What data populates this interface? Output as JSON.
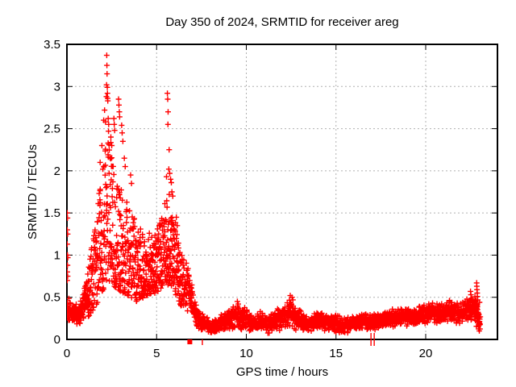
{
  "chart_data": {
    "type": "scatter",
    "title": "Day 350 of 2024, SRMTID for receiver areg",
    "xlabel": "GPS time / hours",
    "ylabel": "SRMTID / TECUs",
    "xlim": [
      0,
      24
    ],
    "ylim": [
      0,
      3.5
    ],
    "xticks": [
      0,
      5,
      10,
      15,
      20
    ],
    "xtick_labels": [
      "0",
      "5",
      "10",
      "15",
      "20"
    ],
    "yticks": [
      0,
      0.5,
      1,
      1.5,
      2,
      2.5,
      3,
      3.5
    ],
    "ytick_labels": [
      "0",
      "0.5",
      "1",
      "1.5",
      "2",
      "2.5",
      "3",
      "3.5"
    ],
    "grid": "dotted",
    "legend": "none",
    "marker": {
      "shape": "plus",
      "color": "#ff0000",
      "size": 7
    },
    "series_name": "SRMTID for receiver areg",
    "time_range_hours": [
      0,
      23.05
    ],
    "peak_value": 3.37,
    "peak_time": 2.22,
    "seed": 1337,
    "envelope": [
      [
        0.0,
        0.22,
        0.55,
        140
      ],
      [
        0.3,
        0.17,
        0.45,
        155
      ],
      [
        0.7,
        0.15,
        0.42,
        155
      ],
      [
        1.0,
        0.22,
        0.65,
        150
      ],
      [
        1.3,
        0.3,
        1.0,
        140
      ],
      [
        1.6,
        0.4,
        1.45,
        140
      ],
      [
        1.9,
        0.5,
        1.9,
        135
      ],
      [
        2.1,
        0.6,
        2.3,
        135
      ],
      [
        2.3,
        0.7,
        2.6,
        135
      ],
      [
        2.5,
        0.65,
        2.3,
        135
      ],
      [
        2.8,
        0.6,
        2.0,
        130
      ],
      [
        3.1,
        0.55,
        1.75,
        130
      ],
      [
        3.5,
        0.5,
        1.55,
        130
      ],
      [
        3.9,
        0.45,
        1.4,
        130
      ],
      [
        4.3,
        0.5,
        1.3,
        135
      ],
      [
        4.7,
        0.55,
        1.25,
        140
      ],
      [
        5.0,
        0.55,
        1.3,
        140
      ],
      [
        5.3,
        0.6,
        1.45,
        140
      ],
      [
        5.6,
        0.65,
        1.85,
        140
      ],
      [
        5.9,
        0.6,
        1.6,
        140
      ],
      [
        6.2,
        0.45,
        1.2,
        135
      ],
      [
        6.5,
        0.35,
        0.95,
        130
      ],
      [
        6.8,
        0.3,
        0.9,
        125
      ],
      [
        7.0,
        0.2,
        0.6,
        120
      ],
      [
        7.2,
        0.15,
        0.45,
        115
      ],
      [
        7.5,
        0.08,
        0.28,
        115
      ],
      [
        7.7,
        0.12,
        0.38,
        115
      ],
      [
        8.0,
        0.05,
        0.2,
        115
      ],
      [
        8.3,
        0.08,
        0.25,
        115
      ],
      [
        8.6,
        0.1,
        0.32,
        115
      ],
      [
        9.0,
        0.1,
        0.35,
        115
      ],
      [
        9.4,
        0.12,
        0.45,
        115
      ],
      [
        9.7,
        0.1,
        0.38,
        115
      ],
      [
        10.0,
        0.1,
        0.42,
        115
      ],
      [
        10.4,
        0.08,
        0.3,
        115
      ],
      [
        10.8,
        0.1,
        0.35,
        115
      ],
      [
        11.2,
        0.06,
        0.28,
        115
      ],
      [
        11.6,
        0.1,
        0.38,
        115
      ],
      [
        12.0,
        0.1,
        0.4,
        115
      ],
      [
        12.4,
        0.12,
        0.52,
        115
      ],
      [
        12.7,
        0.1,
        0.42,
        115
      ],
      [
        13.0,
        0.1,
        0.38,
        115
      ],
      [
        13.4,
        0.07,
        0.3,
        115
      ],
      [
        13.8,
        0.1,
        0.32,
        115
      ],
      [
        14.2,
        0.1,
        0.35,
        115
      ],
      [
        14.6,
        0.08,
        0.3,
        115
      ],
      [
        15.0,
        0.08,
        0.32,
        115
      ],
      [
        15.4,
        0.06,
        0.26,
        115
      ],
      [
        15.8,
        0.08,
        0.28,
        115
      ],
      [
        16.3,
        0.12,
        0.3,
        115
      ],
      [
        16.8,
        0.1,
        0.32,
        115
      ],
      [
        17.3,
        0.12,
        0.33,
        115
      ],
      [
        17.8,
        0.13,
        0.35,
        115
      ],
      [
        18.3,
        0.15,
        0.38,
        115
      ],
      [
        18.8,
        0.16,
        0.4,
        115
      ],
      [
        19.3,
        0.15,
        0.38,
        115
      ],
      [
        19.8,
        0.17,
        0.42,
        118
      ],
      [
        20.3,
        0.18,
        0.45,
        118
      ],
      [
        20.8,
        0.18,
        0.45,
        118
      ],
      [
        21.3,
        0.18,
        0.48,
        118
      ],
      [
        21.8,
        0.18,
        0.45,
        118
      ],
      [
        22.3,
        0.2,
        0.5,
        122
      ],
      [
        22.7,
        0.16,
        0.55,
        140
      ],
      [
        22.95,
        0.08,
        0.45,
        190
      ],
      [
        23.05,
        0.05,
        0.3,
        120
      ]
    ],
    "outliers": [
      [
        0.02,
        1.5
      ],
      [
        0.03,
        1.44
      ],
      [
        0.02,
        1.3
      ],
      [
        0.04,
        1.25
      ],
      [
        0.02,
        1.13
      ],
      [
        0.03,
        1.0
      ],
      [
        0.05,
        0.97
      ],
      [
        0.03,
        0.88
      ],
      [
        0.02,
        0.8
      ],
      [
        0.04,
        0.75
      ],
      [
        0.02,
        0.7
      ],
      [
        1.85,
        2.1
      ],
      [
        1.95,
        2.3
      ],
      [
        2.05,
        2.6
      ],
      [
        2.1,
        2.72
      ],
      [
        2.15,
        2.58
      ],
      [
        2.2,
        2.88
      ],
      [
        2.21,
        3.02
      ],
      [
        2.22,
        3.37
      ],
      [
        2.23,
        3.25
      ],
      [
        2.24,
        3.15
      ],
      [
        2.25,
        2.99
      ],
      [
        2.26,
        2.92
      ],
      [
        2.27,
        2.86
      ],
      [
        2.28,
        2.83
      ],
      [
        2.3,
        2.62
      ],
      [
        2.33,
        2.55
      ],
      [
        2.45,
        2.4
      ],
      [
        2.5,
        2.3
      ],
      [
        2.62,
        2.62
      ],
      [
        2.64,
        2.55
      ],
      [
        2.66,
        2.48
      ],
      [
        2.88,
        2.85
      ],
      [
        2.9,
        2.78
      ],
      [
        2.92,
        2.7
      ],
      [
        2.94,
        2.64
      ],
      [
        3.05,
        2.54
      ],
      [
        3.08,
        2.45
      ],
      [
        3.12,
        2.35
      ],
      [
        3.2,
        2.15
      ],
      [
        3.25,
        2.05
      ],
      [
        3.55,
        1.95
      ],
      [
        3.6,
        1.85
      ],
      [
        5.6,
        2.92
      ],
      [
        5.62,
        2.85
      ],
      [
        5.64,
        2.7
      ],
      [
        5.63,
        2.55
      ],
      [
        5.7,
        2.25
      ],
      [
        5.68,
        2.02
      ],
      [
        5.73,
        1.97
      ],
      [
        5.55,
        1.93
      ],
      [
        5.78,
        1.9
      ],
      [
        5.82,
        1.86
      ],
      [
        5.85,
        1.75
      ],
      [
        5.9,
        1.7
      ],
      [
        6.1,
        1.45
      ],
      [
        6.15,
        1.35
      ],
      [
        9.5,
        0.45
      ],
      [
        9.55,
        0.42
      ],
      [
        12.45,
        0.52
      ],
      [
        12.55,
        0.5
      ],
      [
        12.6,
        0.47
      ],
      [
        22.5,
        0.57
      ],
      [
        22.52,
        0.53
      ],
      [
        22.55,
        0.49
      ],
      [
        22.84,
        0.67
      ],
      [
        22.85,
        0.63
      ],
      [
        22.86,
        0.59
      ],
      [
        22.87,
        0.55
      ],
      [
        22.88,
        0.51
      ],
      [
        22.9,
        0.47
      ],
      [
        23.0,
        0.44
      ]
    ],
    "axis_markers": {
      "filled_square_t": 6.85,
      "below_axis_tick_t": 7.55,
      "zero_cross_ticks_t": [
        16.95,
        17.13
      ]
    }
  },
  "colors": {
    "marker": "#ff0000",
    "grid": "#b0b0b0",
    "border": "#000000",
    "background": "#ffffff",
    "text": "#000000"
  }
}
